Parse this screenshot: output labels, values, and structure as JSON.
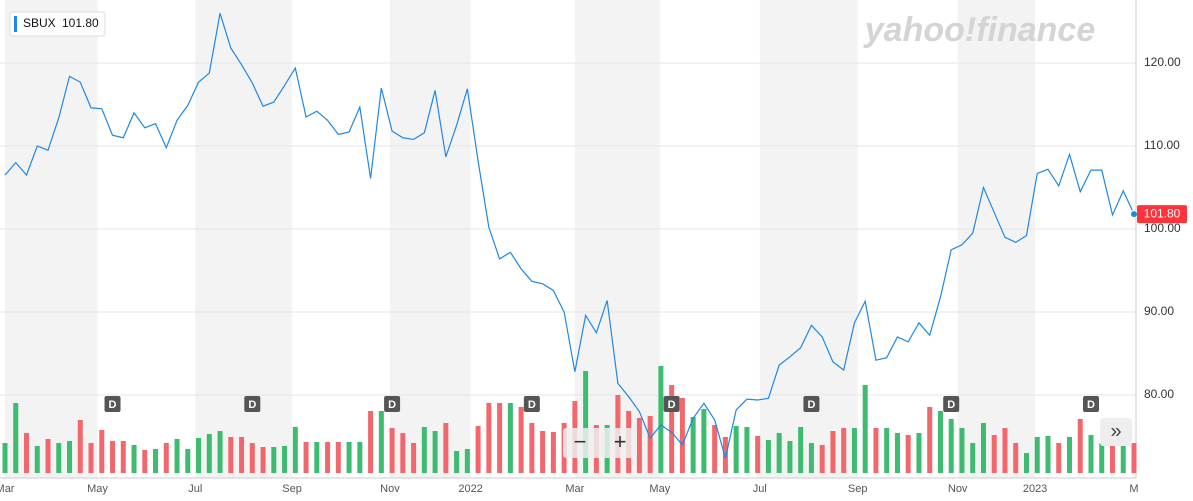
{
  "chart_data": {
    "type": "line",
    "series": [
      {
        "name": "SBUX",
        "color": "#1e88e5",
        "last_value_label": "101.80",
        "values": [
          106.5,
          108,
          106.5,
          110,
          109.5,
          113.4,
          118.4,
          117.7,
          114.6,
          114.5,
          111.3,
          111,
          114,
          112.2,
          112.7,
          109.8,
          113.1,
          114.9,
          117.7,
          118.8,
          126,
          121.8,
          119.8,
          117.6,
          114.8,
          115.3,
          117.3,
          119.4,
          113.5,
          114.2,
          113.1,
          111.4,
          111.7,
          114.7,
          106.1,
          117,
          111.8,
          111,
          110.8,
          111.6,
          116.7,
          108.7,
          112.5,
          116.9,
          108.2,
          100.2,
          96.4,
          97.2,
          95.2,
          93.7,
          93.4,
          92.6,
          90,
          82.8,
          89.6,
          87.5,
          91.4,
          81.4,
          79.8,
          78,
          74.8,
          76.4,
          75.5,
          74,
          77.2,
          79,
          77,
          72.4,
          78.2,
          79.5,
          79.4,
          79.6,
          83.6,
          84.6,
          85.7,
          88.4,
          87,
          84,
          83,
          88.7,
          91.3,
          84.2,
          84.5,
          87,
          86.4,
          88.7,
          87.2,
          91.8,
          97.5,
          98.1,
          99.5,
          105,
          102,
          99,
          98.4,
          99.2,
          106.7,
          107.2,
          105.2,
          109,
          104.5,
          107.1,
          107.1,
          101.7,
          104.6,
          101.8
        ]
      }
    ],
    "volume": {
      "up_color": "#3dbb6f",
      "down_color": "#f2676c",
      "ylim": [
        0,
        120
      ],
      "values": [
        30,
        70,
        40,
        27,
        34,
        30,
        32,
        53,
        30,
        43,
        32,
        32,
        28,
        23,
        24,
        30,
        34,
        24,
        35,
        39,
        42,
        36,
        36,
        30,
        26,
        26,
        27,
        46,
        31,
        31,
        31,
        31,
        31,
        31,
        62,
        62,
        45,
        40,
        30,
        46,
        42,
        50,
        22,
        24,
        47,
        70,
        70,
        70,
        66,
        50,
        42,
        41,
        50,
        72,
        102,
        48,
        48,
        78,
        62,
        55,
        57,
        107,
        88,
        75,
        56,
        64,
        48,
        36,
        47,
        46,
        37,
        33,
        40,
        32,
        46,
        30,
        28,
        42,
        45,
        45,
        88,
        45,
        45,
        40,
        38,
        40,
        66,
        62,
        54,
        45,
        30,
        50,
        38,
        45,
        30,
        20,
        36,
        37,
        30,
        36,
        54,
        38,
        30,
        42,
        30,
        30
      ]
    },
    "xlim": [
      0,
      105
    ],
    "xticks": [
      {
        "value": 0,
        "label": "Mar"
      },
      {
        "value": 8.6,
        "label": "May"
      },
      {
        "value": 17.7,
        "label": "Jul"
      },
      {
        "value": 26.7,
        "label": "Sep"
      },
      {
        "value": 35.8,
        "label": "Nov"
      },
      {
        "value": 43.3,
        "label": "2022"
      },
      {
        "value": 53,
        "label": "Mar"
      },
      {
        "value": 60.9,
        "label": "May"
      },
      {
        "value": 70.2,
        "label": "Jul"
      },
      {
        "value": 79.3,
        "label": "Sep"
      },
      {
        "value": 88.6,
        "label": "Nov"
      },
      {
        "value": 95.8,
        "label": "2023"
      },
      {
        "value": 105,
        "label": "M"
      }
    ],
    "ylim": [
      70,
      127.6
    ],
    "yticks": [
      {
        "value": 80,
        "label": "80.00"
      },
      {
        "value": 90,
        "label": "90.00"
      },
      {
        "value": 100,
        "label": "100.00"
      },
      {
        "value": 110,
        "label": "110.00"
      },
      {
        "value": 120,
        "label": "120.00"
      }
    ],
    "grid": true,
    "dividends": [
      {
        "x": 10,
        "label": "D"
      },
      {
        "x": 23,
        "label": "D"
      },
      {
        "x": 36,
        "label": "D"
      },
      {
        "x": 49,
        "label": "D"
      },
      {
        "x": 62,
        "label": "D"
      },
      {
        "x": 75,
        "label": "D"
      },
      {
        "x": 88,
        "label": "D"
      },
      {
        "x": 101,
        "label": "D"
      }
    ],
    "watermark": "yahoo!finance",
    "controls": [
      "−",
      "+",
      "»"
    ]
  }
}
